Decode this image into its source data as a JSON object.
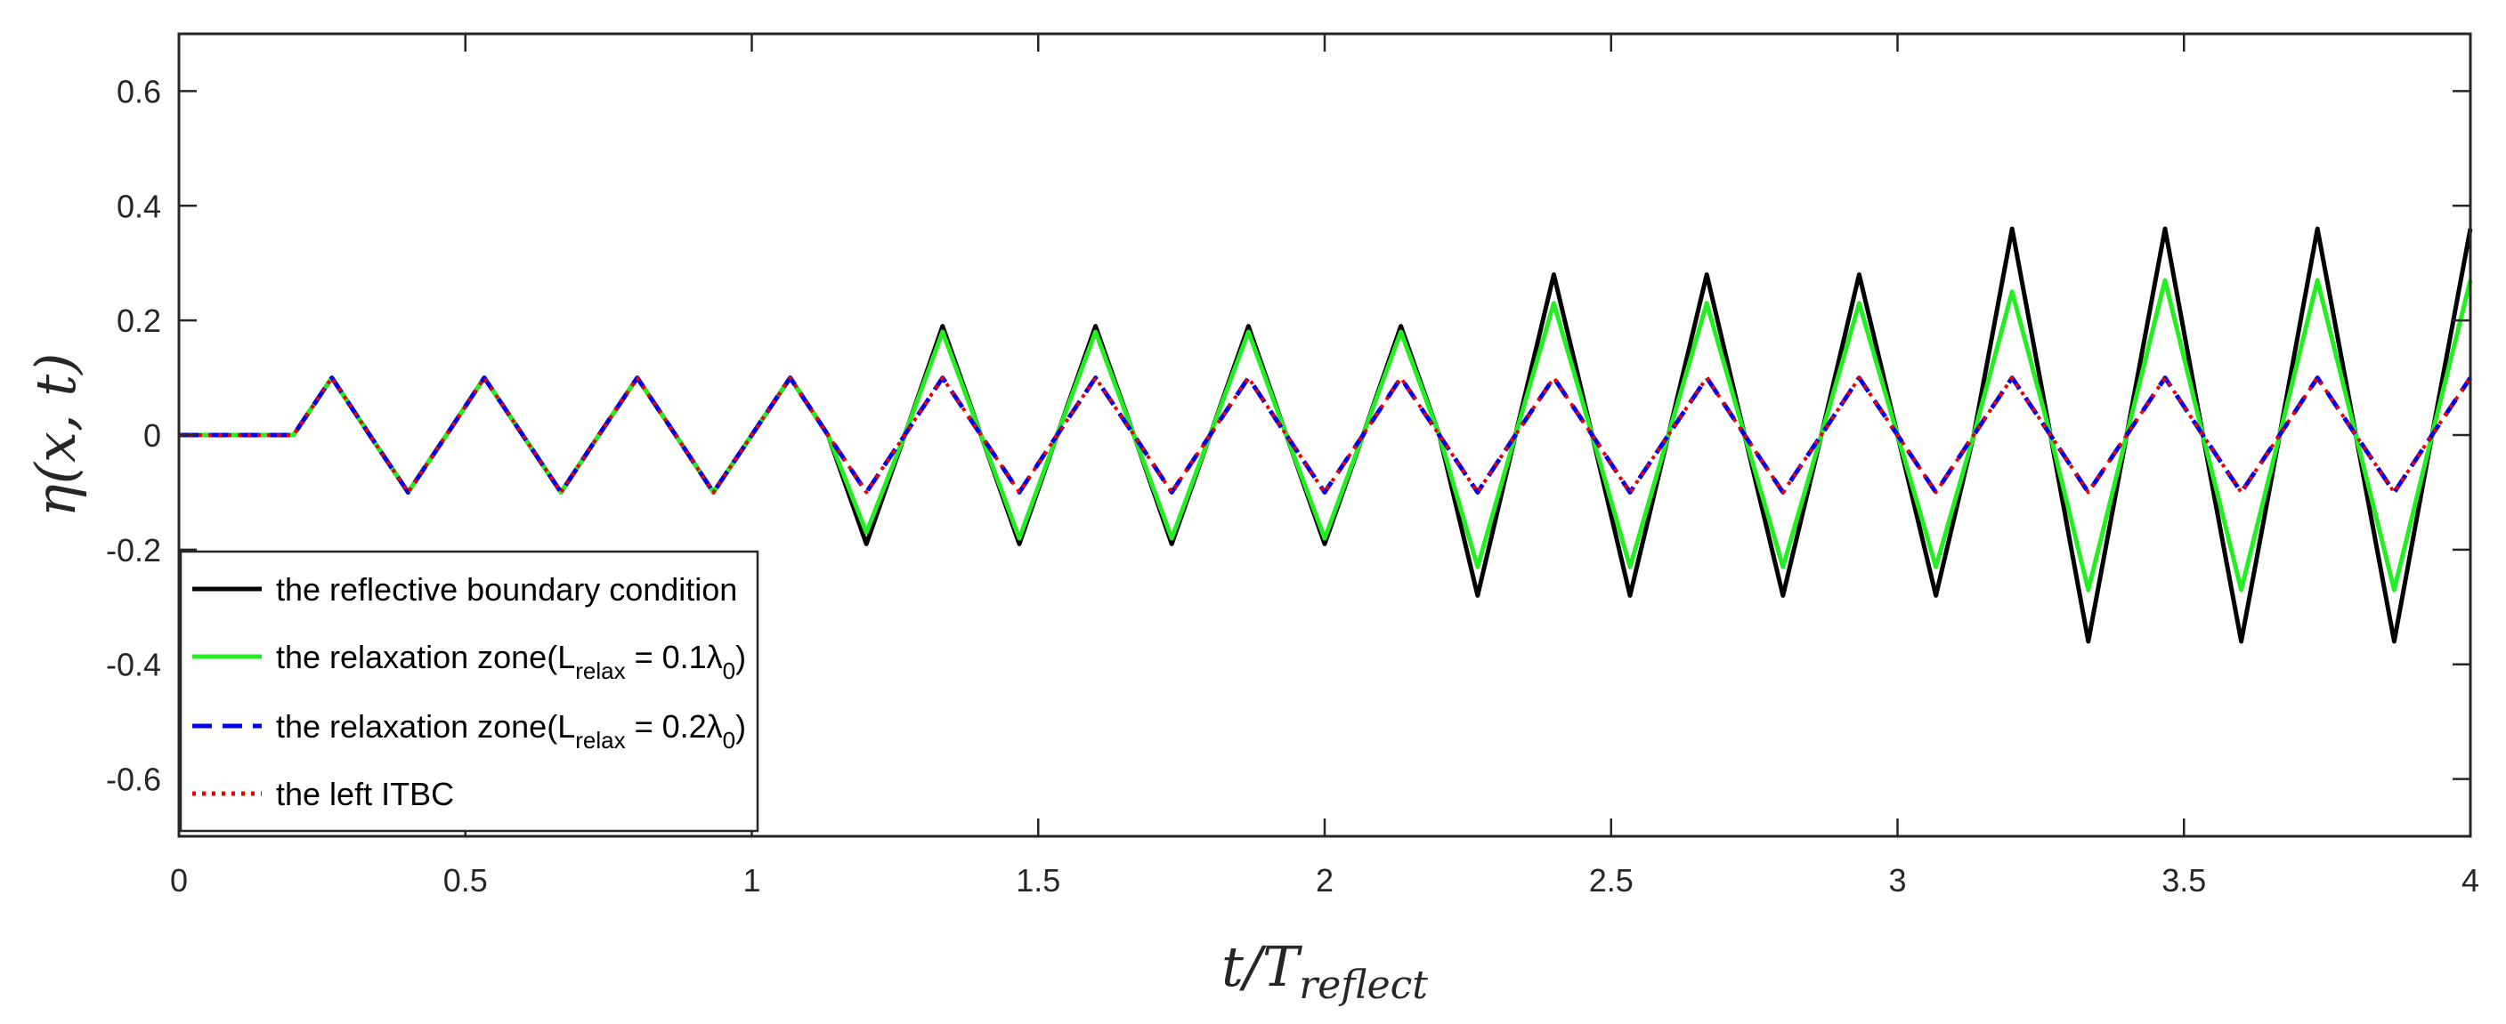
{
  "chart_data": {
    "type": "line",
    "xlabel_main": "t/T",
    "xlabel_sub": "reflect",
    "ylabel": "η(x, t)",
    "xlim": [
      0,
      4
    ],
    "ylim": [
      -0.7,
      0.7
    ],
    "xticks": [
      0,
      0.5,
      1,
      1.5,
      2,
      2.5,
      3,
      3.5,
      4
    ],
    "xtick_labels": [
      "0",
      "0.5",
      "1",
      "1.5",
      "2",
      "2.5",
      "3",
      "3.5",
      "4"
    ],
    "yticks": [
      -0.6,
      -0.4,
      -0.2,
      0,
      0.2,
      0.4,
      0.6
    ],
    "ytick_labels": [
      "-0.6",
      "-0.4",
      "-0.2",
      "0",
      "0.2",
      "0.4",
      "0.6"
    ],
    "grid": false,
    "legend_position": "bottom-left",
    "legend": [
      {
        "prefix": "the reflective boundary condition",
        "sub": "",
        "suffix": "",
        "close": "",
        "color": "#000000",
        "dash": "solid"
      },
      {
        "prefix": "the relaxation zone(L",
        "sub": "relax",
        "suffix": " = 0.1λ",
        "sub2": "0",
        "close": ")",
        "color": "#22ee22",
        "dash": "solid"
      },
      {
        "prefix": "the relaxation zone(L",
        "sub": "relax",
        "suffix": " = 0.2λ",
        "sub2": "0",
        "close": ")",
        "color": "#0000ee",
        "dash": "dashed"
      },
      {
        "prefix": "the left ITBC",
        "sub": "",
        "suffix": "",
        "close": "",
        "color": "#ee0000",
        "dash": "dotted"
      }
    ],
    "series": [
      {
        "key": "reflective",
        "color": "#000000",
        "dash": "solid",
        "x": [
          0,
          0.2,
          0.267,
          0.333,
          0.4,
          0.467,
          0.533,
          0.6,
          0.667,
          0.733,
          0.8,
          0.867,
          0.933,
          1.0,
          1.067,
          1.133,
          1.2,
          1.267,
          1.333,
          1.4,
          1.467,
          1.533,
          1.6,
          1.667,
          1.733,
          1.8,
          1.867,
          1.933,
          2.0,
          2.067,
          2.133,
          2.2,
          2.267,
          2.333,
          2.4,
          2.467,
          2.533,
          2.6,
          2.667,
          2.733,
          2.8,
          2.867,
          2.933,
          3.0,
          3.067,
          3.133,
          3.2,
          3.267,
          3.333,
          3.4,
          3.467,
          3.533,
          3.6,
          3.667,
          3.733,
          3.8,
          3.867,
          3.933,
          4.0
        ],
        "y": [
          0,
          0,
          0.1,
          0,
          -0.1,
          0,
          0.1,
          0,
          -0.1,
          0,
          0.1,
          0,
          -0.1,
          0,
          0.1,
          0,
          -0.19,
          0,
          0.19,
          0,
          -0.19,
          0,
          0.19,
          0,
          -0.19,
          0,
          0.19,
          0,
          -0.19,
          0,
          0.19,
          0,
          -0.28,
          0,
          0.28,
          0,
          -0.28,
          0,
          0.28,
          0,
          -0.28,
          0,
          0.28,
          0,
          -0.28,
          0,
          0.36,
          0,
          -0.36,
          0,
          0.36,
          0,
          -0.36,
          0,
          0.36,
          0,
          -0.36,
          0,
          0.36
        ]
      },
      {
        "key": "relax01",
        "color": "#22ee22",
        "dash": "solid",
        "x": [
          0,
          0.2,
          0.267,
          0.333,
          0.4,
          0.467,
          0.533,
          0.6,
          0.667,
          0.733,
          0.8,
          0.867,
          0.933,
          1.0,
          1.067,
          1.133,
          1.2,
          1.267,
          1.333,
          1.4,
          1.467,
          1.533,
          1.6,
          1.667,
          1.733,
          1.8,
          1.867,
          1.933,
          2.0,
          2.067,
          2.133,
          2.2,
          2.267,
          2.333,
          2.4,
          2.467,
          2.533,
          2.6,
          2.667,
          2.733,
          2.8,
          2.867,
          2.933,
          3.0,
          3.067,
          3.133,
          3.2,
          3.267,
          3.333,
          3.4,
          3.467,
          3.533,
          3.6,
          3.667,
          3.733,
          3.8,
          3.867,
          3.933,
          4.0
        ],
        "y": [
          0,
          0,
          0.1,
          0,
          -0.1,
          0,
          0.1,
          0,
          -0.1,
          0,
          0.1,
          0,
          -0.1,
          0,
          0.1,
          0,
          -0.17,
          0,
          0.18,
          0,
          -0.18,
          0,
          0.18,
          0,
          -0.18,
          0,
          0.18,
          0,
          -0.18,
          0,
          0.18,
          0,
          -0.23,
          0,
          0.23,
          0,
          -0.23,
          0,
          0.23,
          0,
          -0.23,
          0,
          0.23,
          0,
          -0.23,
          0,
          0.25,
          0,
          -0.27,
          0,
          0.27,
          0,
          -0.27,
          0,
          0.27,
          0,
          -0.27,
          0,
          0.27
        ]
      },
      {
        "key": "relax02",
        "color": "#0000ee",
        "dash": "dashed",
        "x": [
          0,
          0.2,
          0.267,
          0.333,
          0.4,
          0.467,
          0.533,
          0.6,
          0.667,
          0.733,
          0.8,
          0.867,
          0.933,
          1.0,
          1.067,
          1.133,
          1.2,
          1.267,
          1.333,
          1.4,
          1.467,
          1.533,
          1.6,
          1.667,
          1.733,
          1.8,
          1.867,
          1.933,
          2.0,
          2.067,
          2.133,
          2.2,
          2.267,
          2.333,
          2.4,
          2.467,
          2.533,
          2.6,
          2.667,
          2.733,
          2.8,
          2.867,
          2.933,
          3.0,
          3.067,
          3.133,
          3.2,
          3.267,
          3.333,
          3.4,
          3.467,
          3.533,
          3.6,
          3.667,
          3.733,
          3.8,
          3.867,
          3.933,
          4.0
        ],
        "y": [
          0,
          0,
          0.1,
          0,
          -0.1,
          0,
          0.1,
          0,
          -0.1,
          0,
          0.1,
          0,
          -0.1,
          0,
          0.1,
          0,
          -0.1,
          0,
          0.1,
          0,
          -0.1,
          0,
          0.1,
          0,
          -0.1,
          0,
          0.1,
          0,
          -0.1,
          0,
          0.1,
          0,
          -0.1,
          0,
          0.1,
          0,
          -0.1,
          0,
          0.1,
          0,
          -0.1,
          0,
          0.1,
          0,
          -0.1,
          0,
          0.1,
          0,
          -0.1,
          0,
          0.1,
          0,
          -0.1,
          0,
          0.1,
          0,
          -0.1,
          0,
          0.1
        ]
      },
      {
        "key": "itbc",
        "color": "#ee0000",
        "dash": "dotted",
        "x": [
          0,
          0.2,
          0.267,
          0.333,
          0.4,
          0.467,
          0.533,
          0.6,
          0.667,
          0.733,
          0.8,
          0.867,
          0.933,
          1.0,
          1.067,
          1.133,
          1.2,
          1.267,
          1.333,
          1.4,
          1.467,
          1.533,
          1.6,
          1.667,
          1.733,
          1.8,
          1.867,
          1.933,
          2.0,
          2.067,
          2.133,
          2.2,
          2.267,
          2.333,
          2.4,
          2.467,
          2.533,
          2.6,
          2.667,
          2.733,
          2.8,
          2.867,
          2.933,
          3.0,
          3.067,
          3.133,
          3.2,
          3.267,
          3.333,
          3.4,
          3.467,
          3.533,
          3.6,
          3.667,
          3.733,
          3.8,
          3.867,
          3.933,
          4.0
        ],
        "y": [
          0,
          0,
          0.1,
          0,
          -0.1,
          0,
          0.1,
          0,
          -0.1,
          0,
          0.1,
          0,
          -0.1,
          0,
          0.1,
          0,
          -0.1,
          0,
          0.1,
          0,
          -0.1,
          0,
          0.1,
          0,
          -0.1,
          0,
          0.1,
          0,
          -0.1,
          0,
          0.1,
          0,
          -0.1,
          0,
          0.1,
          0,
          -0.1,
          0,
          0.1,
          0,
          -0.1,
          0,
          0.1,
          0,
          -0.1,
          0,
          0.1,
          0,
          -0.1,
          0,
          0.1,
          0,
          -0.1,
          0,
          0.1,
          0,
          -0.1,
          0,
          0.1
        ]
      }
    ]
  }
}
